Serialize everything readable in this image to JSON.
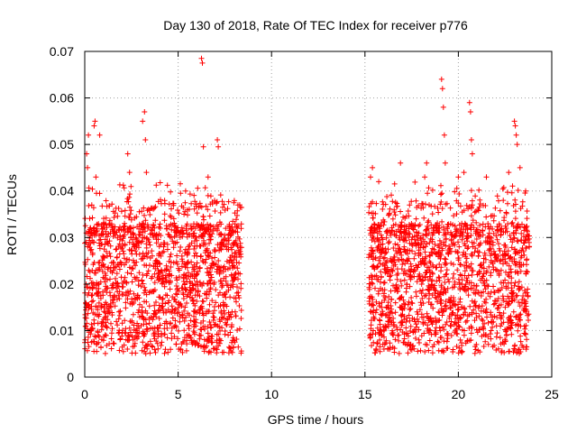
{
  "chart_data": {
    "type": "scatter",
    "title": "Day 130 of 2018, Rate Of TEC Index for receiver p776",
    "xlabel": "GPS time / hours",
    "ylabel": "ROTI / TECUs",
    "xlim": [
      0,
      25
    ],
    "ylim": [
      0,
      0.07
    ],
    "x_ticks": [
      "0",
      "5",
      "10",
      "15",
      "20",
      "25"
    ],
    "y_ticks": [
      "0",
      "0.01",
      "0.02",
      "0.03",
      "0.04",
      "0.05",
      "0.06",
      "0.07"
    ],
    "x_tick_values": [
      0,
      5,
      10,
      15,
      20,
      25
    ],
    "y_tick_values": [
      0,
      0.01,
      0.02,
      0.03,
      0.04,
      0.05,
      0.06,
      0.07
    ],
    "grid": true,
    "marker": "+",
    "color": "#ff0000",
    "series": [
      {
        "name": "ROTI",
        "segments": [
          {
            "x_start": 0.0,
            "x_end": 8.4
          },
          {
            "x_start": 15.2,
            "x_end": 23.8
          }
        ],
        "band": {
          "lower": 0.005,
          "upper": 0.033
        },
        "peaks": [
          {
            "x": 0.1,
            "y": 0.048
          },
          {
            "x": 0.15,
            "y": 0.045
          },
          {
            "x": 0.2,
            "y": 0.052
          },
          {
            "x": 0.5,
            "y": 0.054
          },
          {
            "x": 0.55,
            "y": 0.055
          },
          {
            "x": 0.8,
            "y": 0.052
          },
          {
            "x": 0.6,
            "y": 0.043
          },
          {
            "x": 2.3,
            "y": 0.048
          },
          {
            "x": 2.4,
            "y": 0.044
          },
          {
            "x": 3.1,
            "y": 0.055
          },
          {
            "x": 3.2,
            "y": 0.057
          },
          {
            "x": 3.25,
            "y": 0.051
          },
          {
            "x": 3.3,
            "y": 0.044
          },
          {
            "x": 6.25,
            "y": 0.0685
          },
          {
            "x": 6.3,
            "y": 0.0675
          },
          {
            "x": 6.35,
            "y": 0.0495
          },
          {
            "x": 6.6,
            "y": 0.043
          },
          {
            "x": 6.6,
            "y": 0.039
          },
          {
            "x": 7.1,
            "y": 0.051
          },
          {
            "x": 7.15,
            "y": 0.0495
          },
          {
            "x": 5.4,
            "y": 0.04
          },
          {
            "x": 8.2,
            "y": 0.037
          },
          {
            "x": 15.3,
            "y": 0.043
          },
          {
            "x": 15.4,
            "y": 0.045
          },
          {
            "x": 16.9,
            "y": 0.046
          },
          {
            "x": 18.2,
            "y": 0.043
          },
          {
            "x": 18.3,
            "y": 0.046
          },
          {
            "x": 19.1,
            "y": 0.064
          },
          {
            "x": 19.15,
            "y": 0.062
          },
          {
            "x": 19.2,
            "y": 0.058
          },
          {
            "x": 19.25,
            "y": 0.052
          },
          {
            "x": 19.3,
            "y": 0.046
          },
          {
            "x": 20.0,
            "y": 0.043
          },
          {
            "x": 20.3,
            "y": 0.044
          },
          {
            "x": 20.6,
            "y": 0.059
          },
          {
            "x": 20.65,
            "y": 0.057
          },
          {
            "x": 20.7,
            "y": 0.051
          },
          {
            "x": 20.75,
            "y": 0.048
          },
          {
            "x": 21.5,
            "y": 0.043
          },
          {
            "x": 22.7,
            "y": 0.044
          },
          {
            "x": 23.0,
            "y": 0.055
          },
          {
            "x": 23.05,
            "y": 0.054
          },
          {
            "x": 23.1,
            "y": 0.052
          },
          {
            "x": 23.15,
            "y": 0.05
          },
          {
            "x": 23.3,
            "y": 0.045
          },
          {
            "x": 23.6,
            "y": 0.04
          }
        ]
      }
    ]
  }
}
